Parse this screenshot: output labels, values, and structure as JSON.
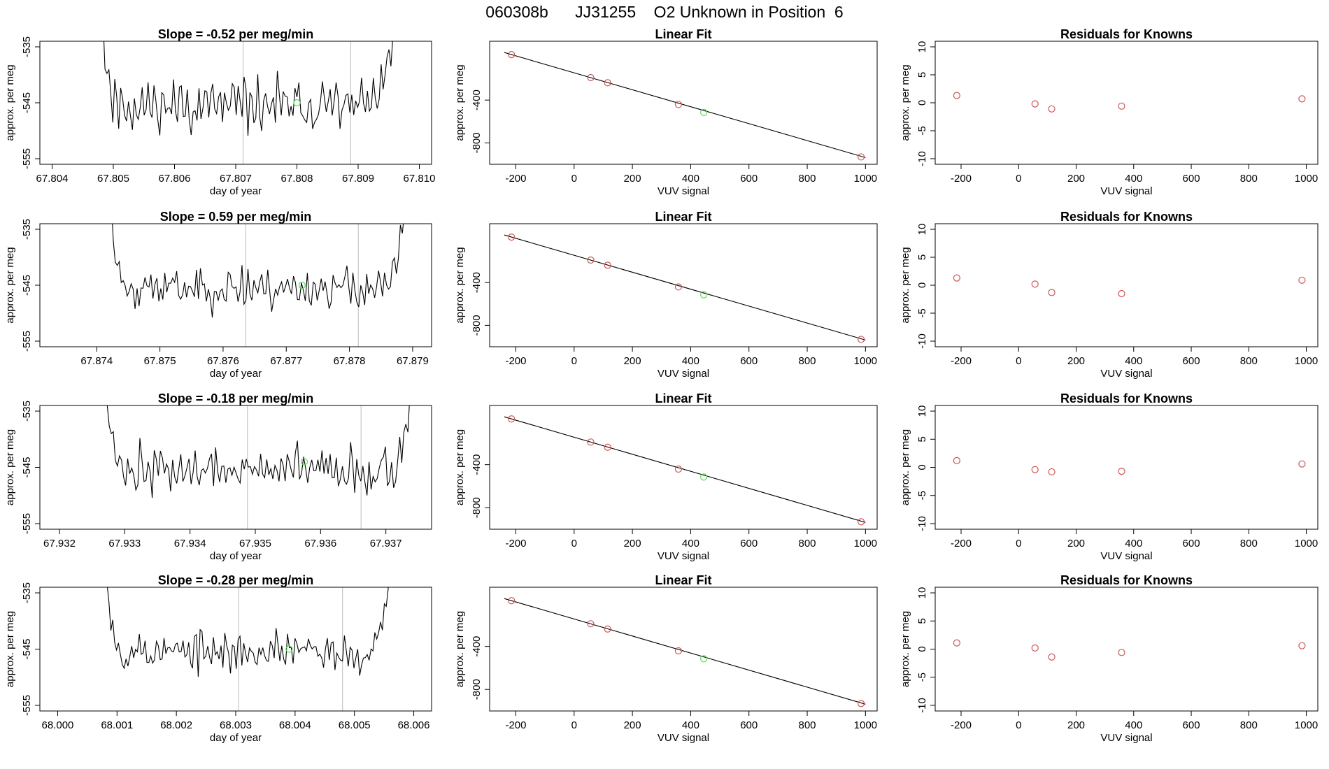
{
  "page": {
    "title": "060308b      JJ31255    O2 Unknown in Position  6"
  },
  "colors": {
    "trace": "#000000",
    "knowns": "#cd5555",
    "unknown": "#55dd55",
    "cursor": "#bbbbbb",
    "axis": "#000000"
  },
  "chart_data": [
    {
      "type": "line",
      "title": "Slope =  -0.52  per meg/min",
      "xlabel": "day of year",
      "ylabel": "approx. per meg",
      "xlim": [
        67.8038,
        67.8102
      ],
      "ylim": [
        -556,
        -534
      ],
      "xticks": [
        67.804,
        67.805,
        67.806,
        67.807,
        67.808,
        67.809,
        67.81
      ],
      "xtick_labels": [
        "67.804",
        "67.805",
        "67.806",
        "67.807",
        "67.808",
        "67.809",
        "67.810"
      ],
      "yticks": [
        -555,
        -545,
        -535
      ],
      "ytick_labels": [
        "-555",
        "-545",
        "-535"
      ],
      "x_start": 67.8048,
      "x_end": 67.8096,
      "trace_seed": 11,
      "noise_amp": 3.8,
      "cursors": [
        67.80712,
        67.80888
      ],
      "unknown_point": {
        "x": 67.808,
        "y": -545
      }
    },
    {
      "type": "scatter",
      "title": "Linear Fit",
      "xlabel": "VUV signal",
      "ylabel": "approx. per meg",
      "xlim": [
        -290,
        1040
      ],
      "ylim": [
        -1000,
        150
      ],
      "xticks": [
        -200,
        0,
        200,
        400,
        600,
        800,
        1000
      ],
      "xtick_labels": [
        "-200",
        "0",
        "200",
        "400",
        "600",
        "800",
        "1000"
      ],
      "yticks": [
        -800,
        -400
      ],
      "ytick_labels": [
        "-800",
        "-400"
      ],
      "fit": {
        "x0": -240,
        "y0": 45,
        "x1": 1000,
        "y1": -937
      },
      "knowns": [
        {
          "x": -215,
          "y": 25
        },
        {
          "x": 57,
          "y": -190
        },
        {
          "x": 115,
          "y": -238
        },
        {
          "x": 358,
          "y": -441
        },
        {
          "x": 985,
          "y": -931
        }
      ],
      "unknown": {
        "x": 445,
        "y": -515
      }
    },
    {
      "type": "scatter",
      "title": "Residuals for Knowns",
      "xlabel": "VUV signal",
      "ylabel": "approx. per meg",
      "xlim": [
        -290,
        1040
      ],
      "ylim": [
        -11,
        11
      ],
      "xticks": [
        -200,
        0,
        200,
        400,
        600,
        800,
        1000
      ],
      "xtick_labels": [
        "-200",
        "0",
        "200",
        "400",
        "600",
        "800",
        "1000"
      ],
      "yticks": [
        -10,
        -5,
        0,
        5,
        10
      ],
      "ytick_labels": [
        "-10",
        "-5",
        "0",
        "5",
        "10"
      ],
      "points": [
        {
          "x": -215,
          "y": 1.3
        },
        {
          "x": 57,
          "y": -0.2
        },
        {
          "x": 115,
          "y": -1.1
        },
        {
          "x": 358,
          "y": -0.6
        },
        {
          "x": 985,
          "y": 0.7
        }
      ]
    },
    {
      "type": "line",
      "title": "Slope =  0.59  per meg/min",
      "xlabel": "day of year",
      "ylabel": "approx. per meg",
      "xlim": [
        67.8731,
        67.8793
      ],
      "ylim": [
        -556,
        -534
      ],
      "xticks": [
        67.874,
        67.875,
        67.876,
        67.877,
        67.878,
        67.879
      ],
      "xtick_labels": [
        "67.874",
        "67.875",
        "67.876",
        "67.877",
        "67.878",
        "67.879"
      ],
      "yticks": [
        -555,
        -545,
        -535
      ],
      "ytick_labels": [
        "-555",
        "-545",
        "-535"
      ],
      "x_start": 67.8742,
      "x_end": 67.8789,
      "trace_seed": 23,
      "noise_amp": 3.0,
      "cursors": [
        67.87636,
        67.87814
      ],
      "unknown_point": {
        "x": 67.87725,
        "y": -545
      }
    },
    {
      "type": "scatter",
      "title": "Linear Fit",
      "xlabel": "VUV signal",
      "ylabel": "approx. per meg",
      "xlim": [
        -290,
        1040
      ],
      "ylim": [
        -1000,
        150
      ],
      "xticks": [
        -200,
        0,
        200,
        400,
        600,
        800,
        1000
      ],
      "xtick_labels": [
        "-200",
        "0",
        "200",
        "400",
        "600",
        "800",
        "1000"
      ],
      "yticks": [
        -800,
        -400
      ],
      "ytick_labels": [
        "-800",
        "-400"
      ],
      "fit": {
        "x0": -240,
        "y0": 45,
        "x1": 1000,
        "y1": -937
      },
      "knowns": [
        {
          "x": -215,
          "y": 25
        },
        {
          "x": 57,
          "y": -190
        },
        {
          "x": 115,
          "y": -238
        },
        {
          "x": 358,
          "y": -441
        },
        {
          "x": 985,
          "y": -931
        }
      ],
      "unknown": {
        "x": 445,
        "y": -515
      }
    },
    {
      "type": "scatter",
      "title": "Residuals for Knowns",
      "xlabel": "VUV signal",
      "ylabel": "approx. per meg",
      "xlim": [
        -290,
        1040
      ],
      "ylim": [
        -11,
        11
      ],
      "xticks": [
        -200,
        0,
        200,
        400,
        600,
        800,
        1000
      ],
      "xtick_labels": [
        "-200",
        "0",
        "200",
        "400",
        "600",
        "800",
        "1000"
      ],
      "yticks": [
        -10,
        -5,
        0,
        5,
        10
      ],
      "ytick_labels": [
        "-10",
        "-5",
        "0",
        "5",
        "10"
      ],
      "points": [
        {
          "x": -215,
          "y": 1.3
        },
        {
          "x": 57,
          "y": 0.2
        },
        {
          "x": 115,
          "y": -1.3
        },
        {
          "x": 358,
          "y": -1.5
        },
        {
          "x": 985,
          "y": 0.9
        }
      ]
    },
    {
      "type": "line",
      "title": "Slope =  -0.18  per meg/min",
      "xlabel": "day of year",
      "ylabel": "approx. per meg",
      "xlim": [
        67.9317,
        67.9377
      ],
      "ylim": [
        -556,
        -534
      ],
      "xticks": [
        67.932,
        67.933,
        67.934,
        67.935,
        67.936,
        67.937
      ],
      "xtick_labels": [
        "67.932",
        "67.933",
        "67.934",
        "67.935",
        "67.936",
        "67.937"
      ],
      "yticks": [
        -555,
        -545,
        -535
      ],
      "ytick_labels": [
        "-555",
        "-545",
        "-535"
      ],
      "x_start": 67.9327,
      "x_end": 67.9374,
      "trace_seed": 37,
      "noise_amp": 3.4,
      "cursors": [
        67.93488,
        67.93662
      ],
      "unknown_point": {
        "x": 67.93575,
        "y": -544
      }
    },
    {
      "type": "scatter",
      "title": "Linear Fit",
      "xlabel": "VUV signal",
      "ylabel": "approx. per meg",
      "xlim": [
        -290,
        1040
      ],
      "ylim": [
        -1000,
        150
      ],
      "xticks": [
        -200,
        0,
        200,
        400,
        600,
        800,
        1000
      ],
      "xtick_labels": [
        "-200",
        "0",
        "200",
        "400",
        "600",
        "800",
        "1000"
      ],
      "yticks": [
        -800,
        -400
      ],
      "ytick_labels": [
        "-800",
        "-400"
      ],
      "fit": {
        "x0": -240,
        "y0": 45,
        "x1": 1000,
        "y1": -937
      },
      "knowns": [
        {
          "x": -215,
          "y": 25
        },
        {
          "x": 57,
          "y": -190
        },
        {
          "x": 115,
          "y": -238
        },
        {
          "x": 358,
          "y": -441
        },
        {
          "x": 985,
          "y": -931
        }
      ],
      "unknown": {
        "x": 445,
        "y": -515
      }
    },
    {
      "type": "scatter",
      "title": "Residuals for Knowns",
      "xlabel": "VUV signal",
      "ylabel": "approx. per meg",
      "xlim": [
        -290,
        1040
      ],
      "ylim": [
        -11,
        11
      ],
      "xticks": [
        -200,
        0,
        200,
        400,
        600,
        800,
        1000
      ],
      "xtick_labels": [
        "-200",
        "0",
        "200",
        "400",
        "600",
        "800",
        "1000"
      ],
      "yticks": [
        -10,
        -5,
        0,
        5,
        10
      ],
      "ytick_labels": [
        "-10",
        "-5",
        "0",
        "5",
        "10"
      ],
      "points": [
        {
          "x": -215,
          "y": 1.2
        },
        {
          "x": 57,
          "y": -0.4
        },
        {
          "x": 115,
          "y": -0.8
        },
        {
          "x": 358,
          "y": -0.7
        },
        {
          "x": 985,
          "y": 0.6
        }
      ]
    },
    {
      "type": "line",
      "title": "Slope =  -0.28  per meg/min",
      "xlabel": "day of year",
      "ylabel": "approx. per meg",
      "xlim": [
        67.9997,
        68.0063
      ],
      "ylim": [
        -556,
        -534
      ],
      "xticks": [
        68.0,
        68.001,
        68.002,
        68.003,
        68.004,
        68.005,
        68.006
      ],
      "xtick_labels": [
        "68.000",
        "68.001",
        "68.002",
        "68.003",
        "68.004",
        "68.005",
        "68.006"
      ],
      "yticks": [
        -555,
        -545,
        -535
      ],
      "ytick_labels": [
        "-555",
        "-545",
        "-535"
      ],
      "x_start": 68.0008,
      "x_end": 68.0056,
      "trace_seed": 53,
      "noise_amp": 3.0,
      "cursors": [
        68.00305,
        68.0048
      ],
      "unknown_point": {
        "x": 68.0039,
        "y": -545
      }
    },
    {
      "type": "scatter",
      "title": "Linear Fit",
      "xlabel": "VUV signal",
      "ylabel": "approx. per meg",
      "xlim": [
        -290,
        1040
      ],
      "ylim": [
        -1000,
        150
      ],
      "xticks": [
        -200,
        0,
        200,
        400,
        600,
        800,
        1000
      ],
      "xtick_labels": [
        "-200",
        "0",
        "200",
        "400",
        "600",
        "800",
        "1000"
      ],
      "yticks": [
        -800,
        -400
      ],
      "ytick_labels": [
        "-800",
        "-400"
      ],
      "fit": {
        "x0": -240,
        "y0": 45,
        "x1": 1000,
        "y1": -937
      },
      "knowns": [
        {
          "x": -215,
          "y": 25
        },
        {
          "x": 57,
          "y": -190
        },
        {
          "x": 115,
          "y": -238
        },
        {
          "x": 358,
          "y": -441
        },
        {
          "x": 985,
          "y": -931
        }
      ],
      "unknown": {
        "x": 445,
        "y": -515
      }
    },
    {
      "type": "scatter",
      "title": "Residuals for Knowns",
      "xlabel": "VUV signal",
      "ylabel": "approx. per meg",
      "xlim": [
        -290,
        1040
      ],
      "ylim": [
        -11,
        11
      ],
      "xticks": [
        -200,
        0,
        200,
        400,
        600,
        800,
        1000
      ],
      "xtick_labels": [
        "-200",
        "0",
        "200",
        "400",
        "600",
        "800",
        "1000"
      ],
      "yticks": [
        -10,
        -5,
        0,
        5,
        10
      ],
      "ytick_labels": [
        "-10",
        "-5",
        "0",
        "5",
        "10"
      ],
      "points": [
        {
          "x": -215,
          "y": 1.1
        },
        {
          "x": 57,
          "y": 0.2
        },
        {
          "x": 115,
          "y": -1.4
        },
        {
          "x": 358,
          "y": -0.6
        },
        {
          "x": 985,
          "y": 0.6
        }
      ]
    }
  ]
}
